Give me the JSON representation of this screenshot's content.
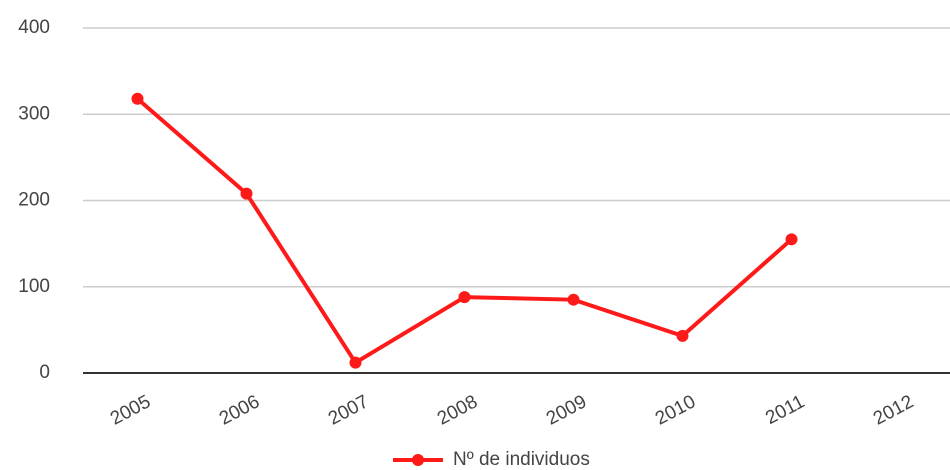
{
  "chart_data": {
    "type": "line",
    "categories": [
      "2005",
      "2006",
      "2007",
      "2008",
      "2009",
      "2010",
      "2011",
      "2012"
    ],
    "series": [
      {
        "name": "Nº de individuos",
        "color": "#ff1a1a",
        "values": [
          318,
          208,
          12,
          88,
          85,
          43,
          155,
          null
        ]
      }
    ],
    "ylim": [
      0,
      400
    ],
    "yticks": [
      0,
      100,
      200,
      300,
      400
    ],
    "grid": true,
    "legend": "bottom"
  }
}
